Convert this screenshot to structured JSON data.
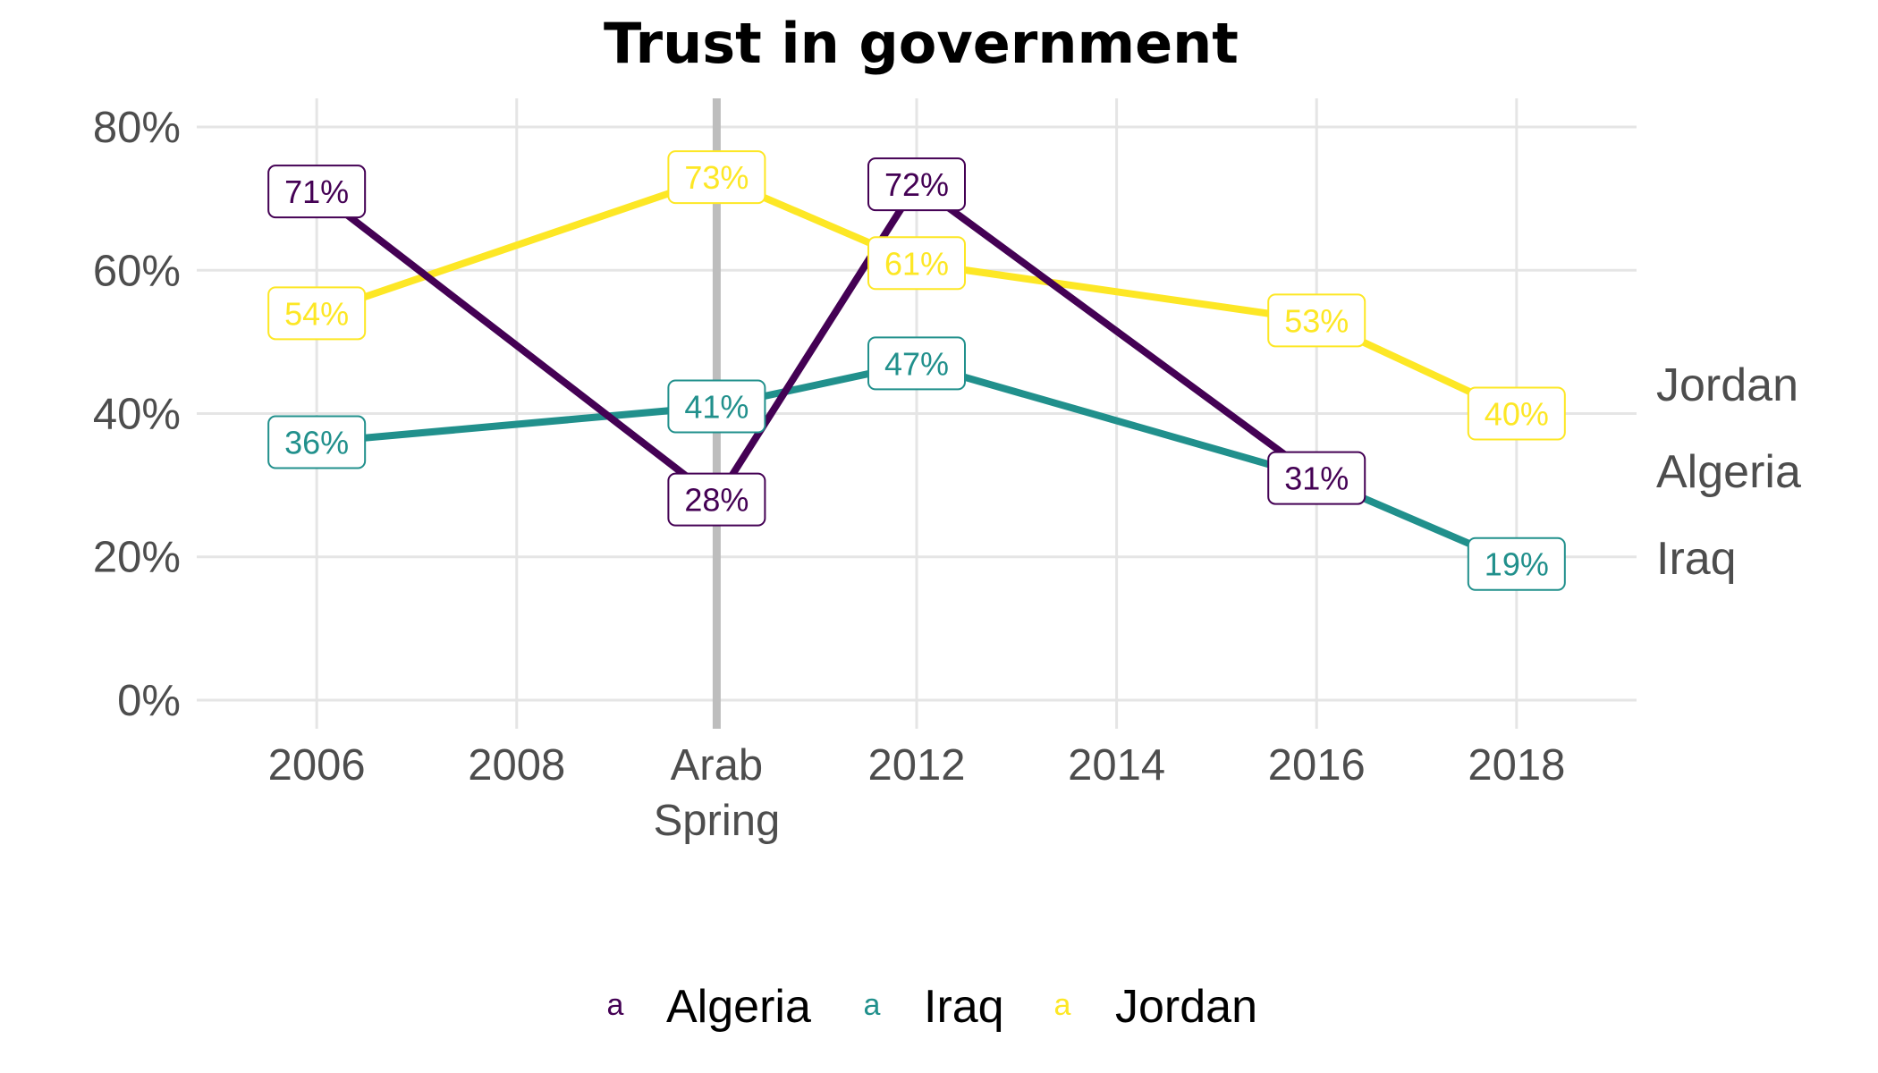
{
  "chart_data": {
    "type": "line",
    "title": "Trust in government",
    "xlabel": "",
    "ylabel": "",
    "x_ticks": [
      "2006",
      "2008",
      "Arab Spring",
      "2012",
      "2014",
      "2016",
      "2018"
    ],
    "x_tick_values": [
      2006,
      2008,
      2010,
      2012,
      2014,
      2016,
      2018
    ],
    "xlim": [
      2004.8,
      2019.2
    ],
    "y_ticks": [
      "0%",
      "20%",
      "40%",
      "60%",
      "80%"
    ],
    "y_tick_values": [
      0,
      20,
      40,
      60,
      80
    ],
    "ylim": [
      -4,
      84
    ],
    "grid": true,
    "reference_line": {
      "x": 2010,
      "color": "#bdbdbd"
    },
    "legend_position": "bottom",
    "series": [
      {
        "name": "Algeria",
        "color": "#440154",
        "x": [
          2006,
          2010,
          2012,
          2016
        ],
        "values": [
          71,
          28,
          72,
          31
        ],
        "labels": [
          "71%",
          "28%",
          "72%",
          "31%"
        ]
      },
      {
        "name": "Iraq",
        "color": "#21908C",
        "x": [
          2006,
          2010,
          2012,
          2016,
          2018
        ],
        "values": [
          36,
          41,
          47,
          31,
          19
        ],
        "labels": [
          "36%",
          "41%",
          "47%",
          "",
          "19%"
        ]
      },
      {
        "name": "Jordan",
        "color": "#FDE725",
        "x": [
          2006,
          2010,
          2012,
          2016,
          2018
        ],
        "values": [
          54,
          73,
          61,
          53,
          40
        ],
        "labels": [
          "54%",
          "73%",
          "61%",
          "53%",
          "40%"
        ]
      }
    ],
    "end_labels": [
      "Jordan",
      "Algeria",
      "Iraq"
    ],
    "legend_key_glyph": "a"
  }
}
